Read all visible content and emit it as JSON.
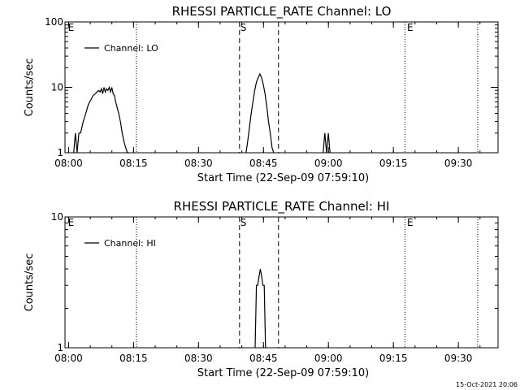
{
  "chart_data": [
    {
      "type": "line",
      "title": "RHESSI PARTICLE_RATE Channel: LO",
      "xlabel": "Start Time (22-Sep-09 07:59:10)",
      "ylabel": "Counts/sec",
      "yscale": "log",
      "ylim": [
        1,
        100
      ],
      "xlim": [
        0,
        100
      ],
      "y_ticks": [
        1,
        10,
        100
      ],
      "y_tick_labels": [
        "1",
        "10",
        "100"
      ],
      "x_ticks": [
        0.83,
        15.83,
        30.83,
        45.83,
        60.83,
        75.83,
        90.83
      ],
      "x_tick_labels": [
        "08:00",
        "08:15",
        "08:30",
        "08:45",
        "09:00",
        "09:15",
        "09:30"
      ],
      "dotted_lines": [
        16.5,
        78.5,
        95.3
      ],
      "dashed_lines": [
        40.3,
        49.3
      ],
      "markers": [
        {
          "text": "E",
          "x": 0.5
        },
        {
          "text": "S",
          "x": 40.3
        },
        {
          "text": "E",
          "x": 78.8
        }
      ],
      "legend": {
        "position": "top-left",
        "label": "Channel: LO"
      },
      "series": [
        {
          "x": [
            2.0,
            2.4,
            2.8,
            3.2,
            3.6,
            4.2,
            4.8,
            5.4,
            6.0,
            6.5,
            7.0,
            7.4,
            7.8,
            8.1,
            8.4,
            8.7,
            9.0,
            9.3,
            9.6,
            9.9,
            10.2,
            10.5,
            10.8,
            11.1,
            11.4,
            11.7,
            12.0,
            12.4,
            12.8,
            13.2,
            13.6,
            14.0,
            14.4,
            14.8
          ],
          "y": [
            1,
            2,
            1,
            2,
            2,
            3,
            4,
            5.5,
            6.5,
            7.5,
            8,
            8.5,
            9,
            8.5,
            9.5,
            8,
            10,
            8.5,
            9.5,
            9,
            10,
            8.5,
            10,
            8,
            7.5,
            6,
            5,
            4,
            3,
            2,
            1.5,
            1.2,
            1,
            1
          ]
        },
        {
          "x": [
            41.8,
            42.2,
            42.6,
            43.0,
            43.4,
            43.8,
            44.2,
            44.6,
            45.0,
            45.4,
            45.8,
            46.2,
            46.6,
            47.0,
            47.4,
            47.8,
            48.2
          ],
          "y": [
            1,
            1.5,
            2.5,
            4,
            6,
            9,
            12,
            14,
            16,
            14,
            11,
            8,
            5,
            3,
            2,
            1.2,
            1
          ]
        },
        {
          "x": [
            59.6,
            60.0,
            60.4,
            60.8,
            61.2
          ],
          "y": [
            1,
            2,
            1,
            2,
            1
          ]
        }
      ]
    },
    {
      "type": "line",
      "title": "RHESSI PARTICLE_RATE Channel: HI",
      "xlabel": "Start Time (22-Sep-09 07:59:10)",
      "ylabel": "Counts/sec",
      "yscale": "log",
      "ylim": [
        1,
        10
      ],
      "xlim": [
        0,
        100
      ],
      "y_ticks": [
        1,
        10
      ],
      "y_tick_labels": [
        "1",
        "10"
      ],
      "x_ticks": [
        0.83,
        15.83,
        30.83,
        45.83,
        60.83,
        75.83,
        90.83
      ],
      "x_tick_labels": [
        "08:00",
        "08:15",
        "08:30",
        "08:45",
        "09:00",
        "09:15",
        "09:30"
      ],
      "dotted_lines": [
        16.5,
        78.5,
        95.3
      ],
      "dashed_lines": [
        40.3,
        49.3
      ],
      "markers": [
        {
          "text": "E",
          "x": 0.5
        },
        {
          "text": "S",
          "x": 40.3
        },
        {
          "text": "E",
          "x": 78.8
        }
      ],
      "legend": {
        "position": "top-left",
        "label": "Channel: HI"
      },
      "series": [
        {
          "x": [
            43.9,
            44.2,
            44.5,
            44.8,
            45.1,
            45.4,
            45.7,
            46.0,
            46.3
          ],
          "y": [
            1,
            3,
            3,
            3.5,
            4,
            3.5,
            3,
            3,
            1
          ]
        }
      ]
    }
  ],
  "footer": {
    "timestamp": "15-Oct-2021 20:06"
  }
}
